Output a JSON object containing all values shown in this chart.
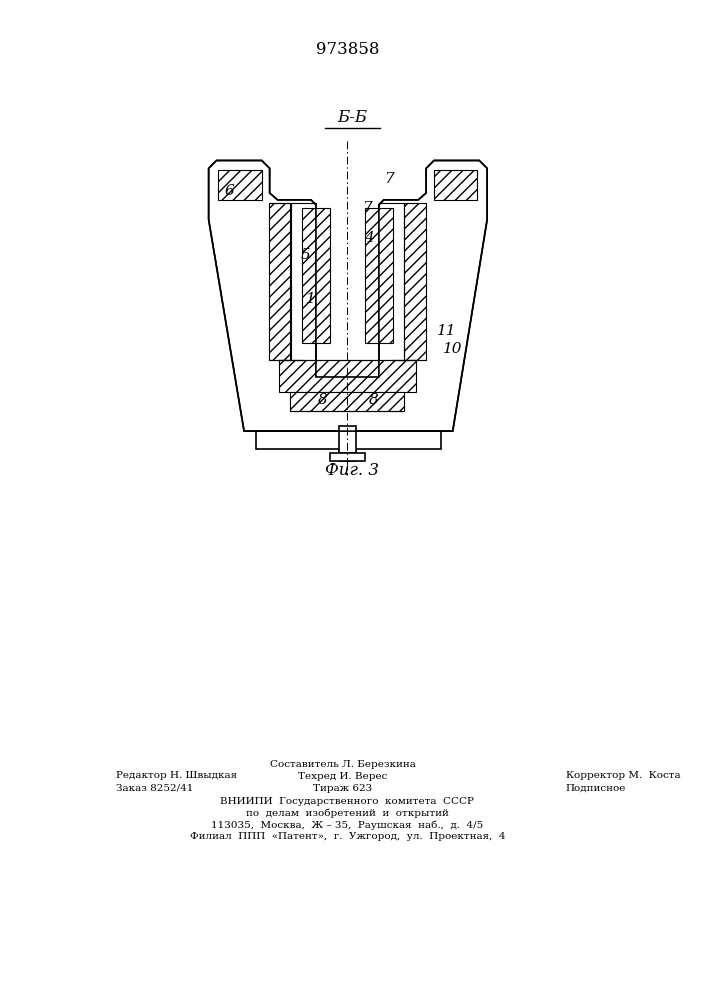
{
  "patent_number": "973858",
  "section_label": "Б-Б",
  "fig_label": "Фиг. 3",
  "bg_color": "#ffffff",
  "line_color": "#000000"
}
